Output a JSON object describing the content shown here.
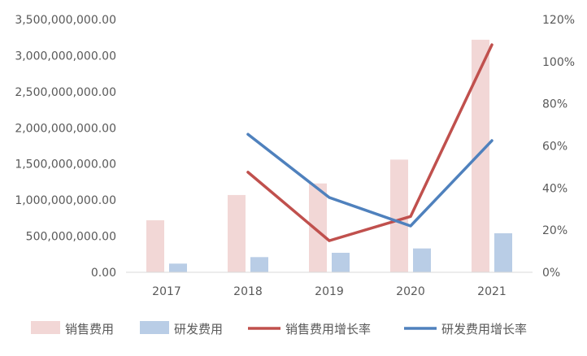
{
  "chart_data": {
    "type": "bar",
    "title": "",
    "categories": [
      "2017",
      "2018",
      "2019",
      "2020",
      "2021"
    ],
    "series": [
      {
        "name": "销售费用",
        "kind": "bar",
        "axis": "left",
        "color": "#f2d7d6",
        "values": [
          720000000,
          1070000000,
          1230000000,
          1560000000,
          3220000000
        ]
      },
      {
        "name": "研发费用",
        "kind": "bar",
        "axis": "left",
        "color": "#b9cde6",
        "values": [
          120000000,
          210000000,
          270000000,
          330000000,
          540000000
        ]
      },
      {
        "name": "销售费用增长率",
        "kind": "line",
        "axis": "right",
        "color": "#c0504d",
        "values": [
          null,
          47.5,
          15.0,
          26.5,
          108.0
        ]
      },
      {
        "name": "研发费用增长率",
        "kind": "line",
        "axis": "right",
        "color": "#4f81bd",
        "values": [
          null,
          65.5,
          35.5,
          22.0,
          62.5
        ]
      }
    ],
    "y_left": {
      "min": 0,
      "max": 3500000000,
      "ticks": [
        0,
        500000000,
        1000000000,
        1500000000,
        2000000000,
        2500000000,
        3000000000,
        3500000000
      ],
      "tick_labels": [
        "0.00",
        "500,000,000.00",
        "1,000,000,000.00",
        "1,500,000,000.00",
        "2,000,000,000.00",
        "2,500,000,000.00",
        "3,000,000,000.00",
        "3,500,000,000.00"
      ]
    },
    "y_right": {
      "min": 0,
      "max": 120,
      "ticks": [
        0,
        20,
        40,
        60,
        80,
        100,
        120
      ],
      "tick_labels": [
        "0%",
        "20%",
        "40%",
        "60%",
        "80%",
        "100%",
        "120%"
      ]
    },
    "grid": false,
    "legend_position": "bottom"
  }
}
